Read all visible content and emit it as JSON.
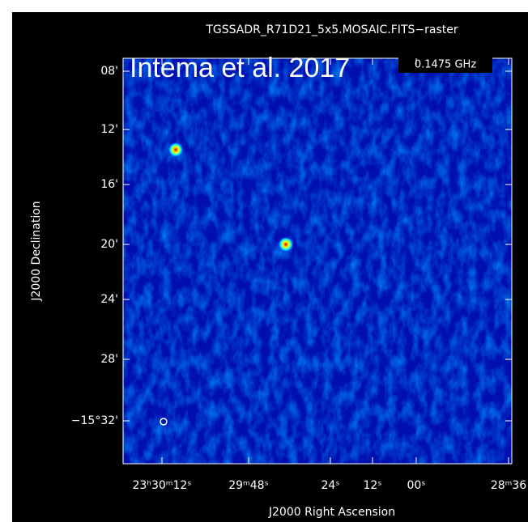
{
  "plot": {
    "title": "TGSSADR_R71D21_5x5.MOSAIC.FITS−raster",
    "annotation": "Intema et al. 2017",
    "frequency": "0.1475 GHz",
    "y_label": "J2000 Declination",
    "x_label": "J2000 Right Ascension",
    "y_ticks": [
      "08'",
      "12'",
      "16'",
      "20'",
      "24'",
      "28'",
      "−15°32'"
    ],
    "x_ticks": [
      "23ʰ30ᵐ12ˢ",
      "29ᵐ48ˢ",
      "24ˢ",
      "12ˢ",
      "00ˢ",
      "28ᵐ36"
    ]
  }
}
